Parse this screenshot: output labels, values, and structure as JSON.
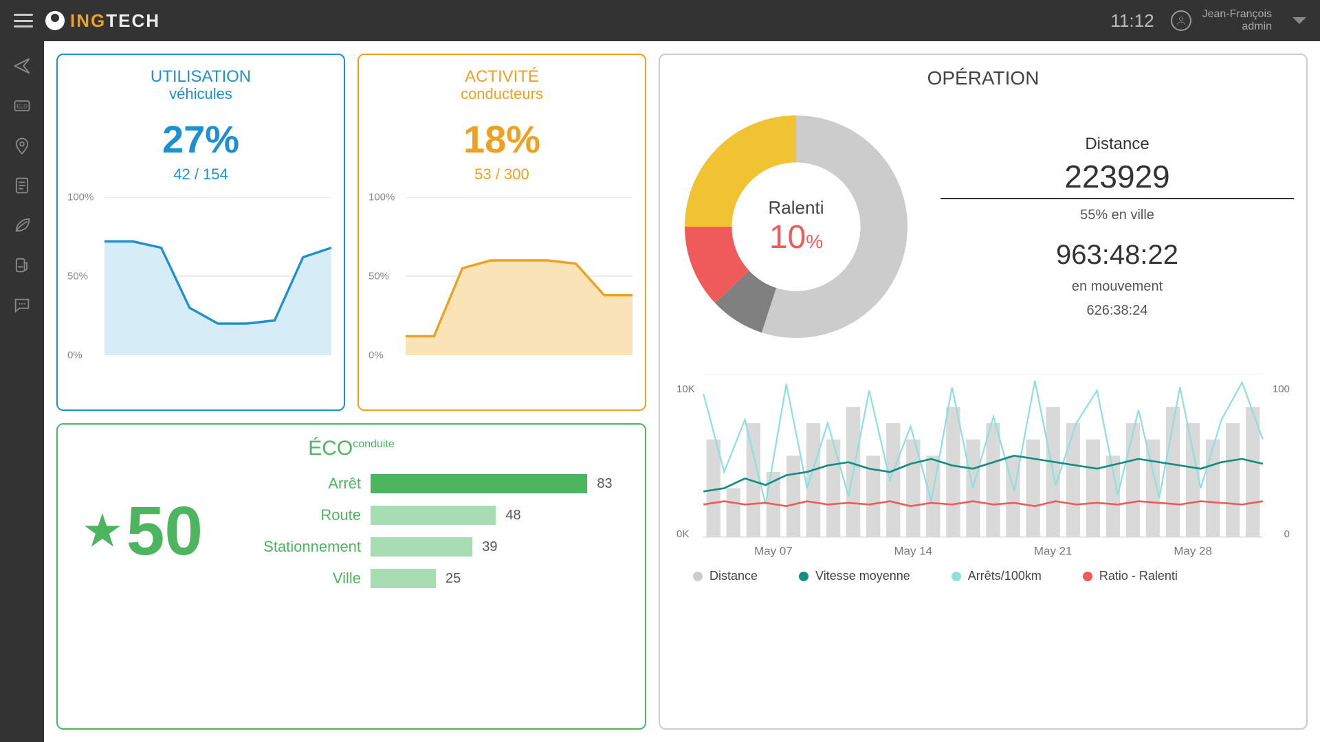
{
  "header": {
    "brand_1": "ING",
    "brand_2": "TECH",
    "clock": "11:12",
    "user_name": "Jean-François",
    "user_role": "admin"
  },
  "colors": {
    "blue": "#1e90d2",
    "orange": "#f0a020",
    "green": "#4db560",
    "green_light": "#a8dcb3",
    "gray": "#cccccc",
    "gray_bar": "#d9d9d9",
    "red": "#ef5a5a",
    "yellow": "#f1c232",
    "teal": "#158d84",
    "cyan": "#8fe0dc",
    "dark": "#333333",
    "text": "#444444"
  },
  "utilisation": {
    "title": "UTILISATION",
    "subtitle": "véhicules",
    "value": "27%",
    "ratio": "42 / 154",
    "chart": {
      "type": "area",
      "ylim": [
        0,
        100
      ],
      "yticks": [
        "100%",
        "50%",
        "0%"
      ],
      "points": [
        72,
        72,
        68,
        30,
        20,
        20,
        22,
        62,
        68
      ],
      "stroke": "#1e90d2",
      "fill": "#d6ecf7"
    }
  },
  "activite": {
    "title": "ACTIVITÉ",
    "subtitle": "conducteurs",
    "value": "18%",
    "ratio": "53 / 300",
    "chart": {
      "type": "area",
      "ylim": [
        0,
        100
      ],
      "yticks": [
        "100%",
        "50%",
        "0%"
      ],
      "points": [
        12,
        12,
        55,
        60,
        60,
        60,
        58,
        38,
        38
      ],
      "stroke": "#f0a020",
      "fill": "#fbe3b8"
    }
  },
  "eco": {
    "title_main": "ÉCO",
    "title_sup": "conduite",
    "score": "50",
    "bars": [
      {
        "label": "Arrêt",
        "value": 83,
        "color": "#4db560"
      },
      {
        "label": "Route",
        "value": 48,
        "color": "#a8dcb3"
      },
      {
        "label": "Stationnement",
        "value": 39,
        "color": "#a8dcb3"
      },
      {
        "label": "Ville",
        "value": 25,
        "color": "#a8dcb3"
      }
    ],
    "bar_max": 100
  },
  "operation": {
    "title": "OPÉRATION",
    "donut": {
      "center_label": "Ralenti",
      "center_value": "10",
      "center_pct": "%",
      "slices": [
        {
          "value": 55,
          "color": "#cccccc"
        },
        {
          "value": 8,
          "color": "#808080"
        },
        {
          "value": 12,
          "color": "#ef5a5a"
        },
        {
          "value": 25,
          "color": "#f1c232"
        }
      ]
    },
    "stats": {
      "distance_label": "Distance",
      "distance_value": "223929",
      "city_pct": "55% en ville",
      "moving_time": "963:48:22",
      "moving_label": "en mouvement",
      "sub_time": "626:38:24"
    },
    "multi_chart": {
      "left_ticks": [
        "10K",
        "0K"
      ],
      "right_ticks": [
        "100",
        "0"
      ],
      "x_labels": [
        "May 07",
        "May 14",
        "May 21",
        "May 28"
      ],
      "bars": [
        6,
        3,
        7,
        4,
        5,
        7,
        6,
        8,
        5,
        7,
        6,
        5,
        8,
        6,
        7,
        5,
        6,
        8,
        7,
        6,
        5,
        7,
        6,
        8,
        7,
        6,
        7,
        8
      ],
      "bar_max": 10,
      "bar_color": "#d9d9d9",
      "line_teal": [
        28,
        30,
        36,
        32,
        38,
        40,
        44,
        46,
        42,
        40,
        45,
        48,
        44,
        42,
        46,
        50,
        48,
        46,
        44,
        42,
        45,
        48,
        46,
        44,
        42,
        46,
        48,
        45
      ],
      "line_cyan": [
        88,
        40,
        72,
        20,
        94,
        30,
        70,
        25,
        90,
        35,
        68,
        22,
        92,
        30,
        74,
        28,
        96,
        32,
        70,
        90,
        26,
        78,
        24,
        92,
        30,
        72,
        95,
        60
      ],
      "line_red": [
        20,
        22,
        20,
        21,
        19,
        22,
        20,
        21,
        20,
        22,
        19,
        21,
        20,
        22,
        20,
        21,
        19,
        22,
        20,
        21,
        20,
        22,
        21,
        20,
        22,
        21,
        20,
        22
      ],
      "line_max": 100
    },
    "legend": [
      {
        "label": "Distance",
        "color": "#cccccc"
      },
      {
        "label": "Vitesse moyenne",
        "color": "#158d84"
      },
      {
        "label": "Arrêts/100km",
        "color": "#8fe0dc"
      },
      {
        "label": "Ratio - Ralenti",
        "color": "#ef5a5a"
      }
    ]
  }
}
